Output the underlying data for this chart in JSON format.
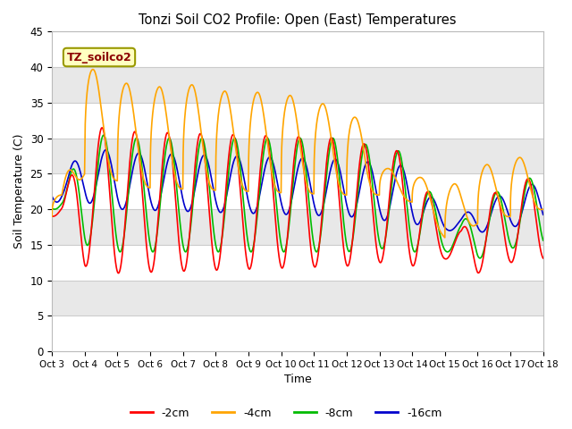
{
  "title": "Tonzi Soil CO2 Profile: Open (East) Temperatures",
  "xlabel": "Time",
  "ylabel": "Soil Temperature (C)",
  "ylim": [
    0,
    45
  ],
  "annotation_text": "TZ_soilco2",
  "annotation_color": "#8B0000",
  "annotation_bg": "#FFFFC0",
  "annotation_edge": "#999900",
  "series": {
    "-2cm": {
      "color": "#ff0000",
      "lw": 1.2
    },
    "-4cm": {
      "color": "#FFA500",
      "lw": 1.2
    },
    "-8cm": {
      "color": "#00bb00",
      "lw": 1.2
    },
    "-16cm": {
      "color": "#0000cc",
      "lw": 1.2
    }
  },
  "xtick_labels": [
    "Oct 3",
    "Oct 4",
    "Oct 5",
    "Oct 6",
    "Oct 7",
    "Oct 8",
    "Oct 9",
    "Oct 10",
    "Oct 11",
    "Oct 12",
    "Oct 13",
    "Oct 14",
    "Oct 15",
    "Oct 16",
    "Oct 17",
    "Oct 18"
  ],
  "ytick_values": [
    0,
    5,
    10,
    15,
    20,
    25,
    30,
    35,
    40,
    45
  ],
  "band_colors": [
    "#ffffff",
    "#e8e8e8"
  ],
  "grid_line_color": "#cccccc",
  "fig_bg": "#ffffff",
  "plot_bg": "#f5f5f5"
}
